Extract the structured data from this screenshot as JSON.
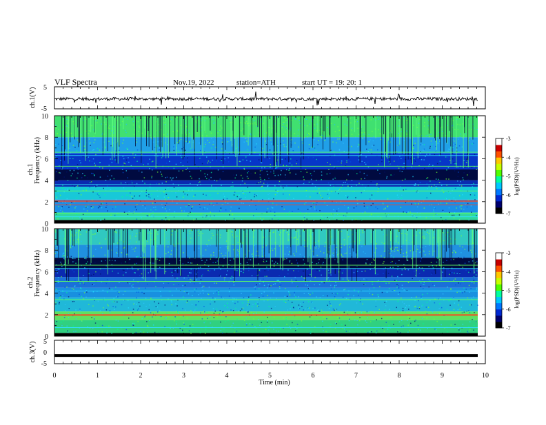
{
  "header": {
    "title": "VLF  Spectra",
    "date": "Nov.19, 2022",
    "station": "station=ATH",
    "start": "start  UT  =    19: 20: 1"
  },
  "chart_data": [
    {
      "type": "line",
      "name": "ch1-waveform",
      "ylabel": "ch.1(V)",
      "ylim": [
        -5,
        5
      ],
      "yticks": [
        "5",
        "-5"
      ],
      "xlim": [
        0,
        10
      ],
      "description_values": "noisy baseline around -0.5 V with spikes to about ±3 V"
    },
    {
      "type": "heatmap",
      "name": "ch1-spectrogram",
      "ylabel": "ch.1",
      "ylabel2": "Frequency  (kHz)",
      "ylim": [
        0,
        10
      ],
      "yticks": [
        "0",
        "2",
        "4",
        "6",
        "8",
        "10"
      ],
      "xlim": [
        0,
        10
      ],
      "colorbar": {
        "label": "log(PSD)(V²/Hz)",
        "range": [
          -7,
          -3
        ],
        "ticks": [
          "-3",
          "-4",
          "-5",
          "-6",
          "-7"
        ]
      },
      "bands": [
        {
          "f0": 0.0,
          "f1": 0.3,
          "color": "#000000"
        },
        {
          "f0": 0.3,
          "f1": 1.0,
          "color": "#2fd7a0"
        },
        {
          "f0": 1.0,
          "f1": 2.2,
          "color": "#1a8fe8"
        },
        {
          "f0": 2.2,
          "f1": 3.4,
          "color": "#18c8d8"
        },
        {
          "f0": 3.4,
          "f1": 4.0,
          "color": "#0a2ab0"
        },
        {
          "f0": 4.0,
          "f1": 5.0,
          "color": "#000a40"
        },
        {
          "f0": 5.0,
          "f1": 6.5,
          "color": "#0636c8"
        },
        {
          "f0": 6.5,
          "f1": 8.0,
          "color": "#20a0e8"
        },
        {
          "f0": 8.0,
          "f1": 10.0,
          "color": "#40e070"
        }
      ],
      "lines_khz": [
        0.6,
        0.9,
        1.7,
        2.0,
        2.1,
        3.0,
        3.6,
        5.3,
        6.3,
        6.6
      ]
    },
    {
      "type": "heatmap",
      "name": "ch2-spectrogram",
      "ylabel": "ch.2",
      "ylabel2": "Frequency  (kHz)",
      "ylim": [
        0,
        10
      ],
      "yticks": [
        "0",
        "2",
        "4",
        "6",
        "8",
        "10"
      ],
      "xlim": [
        0,
        10
      ],
      "colorbar": {
        "label": "log(PSD)(V²/Hz)",
        "range": [
          -7,
          -3
        ],
        "ticks": [
          "-3",
          "-4",
          "-5",
          "-6",
          "-7"
        ]
      },
      "bands": [
        {
          "f0": 0.0,
          "f1": 0.3,
          "color": "#000000"
        },
        {
          "f0": 0.3,
          "f1": 1.5,
          "color": "#30d080"
        },
        {
          "f0": 1.5,
          "f1": 2.3,
          "color": "#60e060"
        },
        {
          "f0": 2.3,
          "f1": 3.6,
          "color": "#20b8d8"
        },
        {
          "f0": 3.6,
          "f1": 4.5,
          "color": "#1890e0"
        },
        {
          "f0": 4.5,
          "f1": 5.5,
          "color": "#1a70d8"
        },
        {
          "f0": 5.5,
          "f1": 6.3,
          "color": "#0a2ab0"
        },
        {
          "f0": 6.3,
          "f1": 7.3,
          "color": "#000a40"
        },
        {
          "f0": 7.3,
          "f1": 8.5,
          "color": "#2090e0"
        },
        {
          "f0": 8.5,
          "f1": 10.0,
          "color": "#30c8c0"
        }
      ],
      "lines_khz": [
        0.8,
        1.9,
        2.0,
        3.4,
        4.2,
        5.1,
        6.3,
        6.6
      ]
    },
    {
      "type": "line",
      "name": "ch3-waveform",
      "ylabel": "ch.3(V)",
      "ylim": [
        -5,
        5
      ],
      "yticks": [
        "5",
        "0",
        "-5"
      ],
      "xlim": [
        0,
        10
      ],
      "level_v": -1.5
    }
  ],
  "xaxis": {
    "label": "Time  (min)",
    "ticks": [
      "0",
      "1",
      "2",
      "3",
      "4",
      "5",
      "6",
      "7",
      "8",
      "9",
      "10"
    ],
    "range": [
      0,
      10
    ]
  },
  "colormap": [
    "#000000",
    "#00006e",
    "#0028d2",
    "#0078ff",
    "#00c8ff",
    "#00ffa0",
    "#50ff00",
    "#c8ff00",
    "#ffc800",
    "#ff5000",
    "#c80000",
    "#ffffff"
  ]
}
